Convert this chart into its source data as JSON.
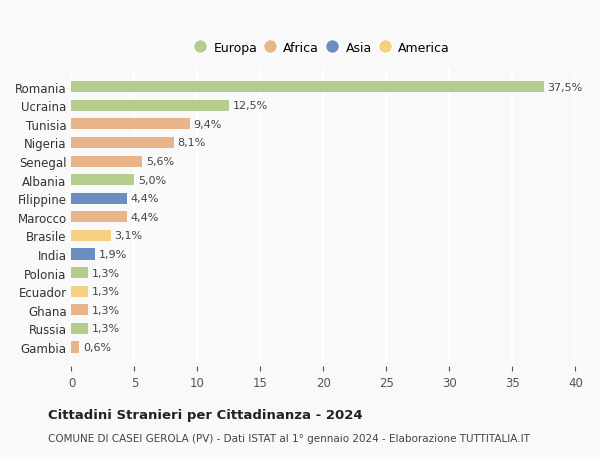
{
  "countries": [
    "Romania",
    "Ucraina",
    "Tunisia",
    "Nigeria",
    "Senegal",
    "Albania",
    "Filippine",
    "Marocco",
    "Brasile",
    "India",
    "Polonia",
    "Ecuador",
    "Ghana",
    "Russia",
    "Gambia"
  ],
  "values": [
    37.5,
    12.5,
    9.4,
    8.1,
    5.6,
    5.0,
    4.4,
    4.4,
    3.1,
    1.9,
    1.3,
    1.3,
    1.3,
    1.3,
    0.6
  ],
  "labels": [
    "37,5%",
    "12,5%",
    "9,4%",
    "8,1%",
    "5,6%",
    "5,0%",
    "4,4%",
    "4,4%",
    "3,1%",
    "1,9%",
    "1,3%",
    "1,3%",
    "1,3%",
    "1,3%",
    "0,6%"
  ],
  "colors": [
    "#b5cc8e",
    "#b5cc8e",
    "#e8b48a",
    "#e8b48a",
    "#e8b48a",
    "#b5cc8e",
    "#6b8dbf",
    "#e8b48a",
    "#f5d080",
    "#6b8dbf",
    "#b5cc8e",
    "#f5d080",
    "#e8b48a",
    "#b5cc8e",
    "#e8b48a"
  ],
  "legend_labels": [
    "Europa",
    "Africa",
    "Asia",
    "America"
  ],
  "legend_colors": [
    "#b5cc8e",
    "#e8b48a",
    "#6b8dbf",
    "#f5d080"
  ],
  "title": "Cittadini Stranieri per Cittadinanza - 2024",
  "subtitle": "COMUNE DI CASEI GEROLA (PV) - Dati ISTAT al 1° gennaio 2024 - Elaborazione TUTTITALIA.IT",
  "xlim": [
    0,
    40
  ],
  "xticks": [
    0,
    5,
    10,
    15,
    20,
    25,
    30,
    35,
    40
  ],
  "background_color": "#f9f9f9",
  "grid_color": "#ffffff",
  "bar_height": 0.6
}
